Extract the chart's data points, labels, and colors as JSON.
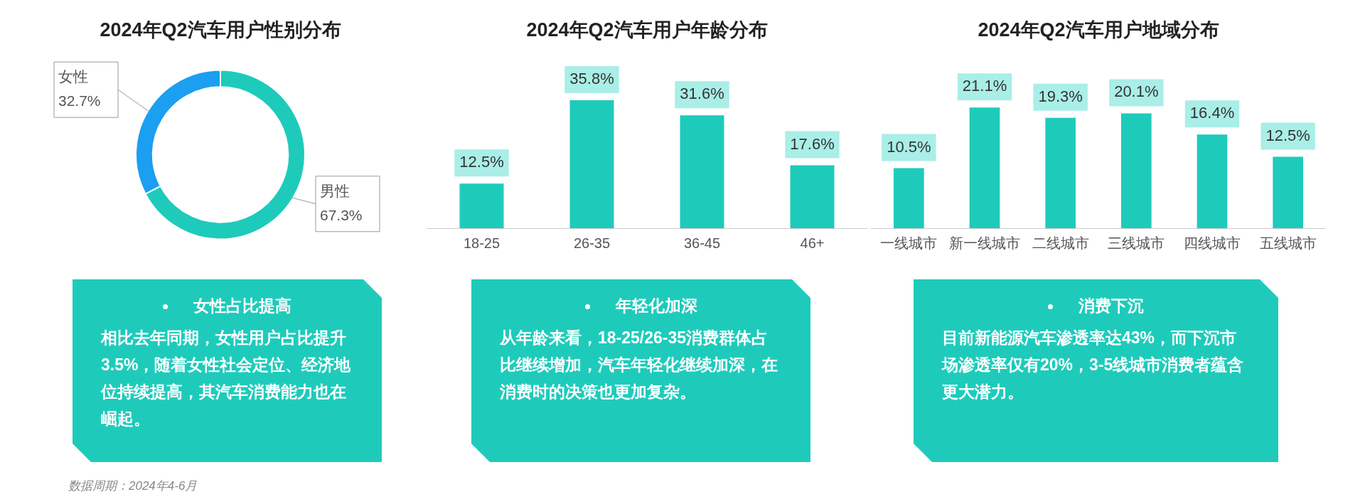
{
  "chart_data": [
    {
      "type": "donut",
      "title": "2024年Q2汽车用户性别分布",
      "categories": [
        "女性",
        "男性"
      ],
      "values": [
        32.7,
        67.3
      ],
      "colors": [
        "#1b9ff0",
        "#1ecbbb"
      ],
      "value_labels": [
        "32.7%",
        "67.3%"
      ],
      "legend": false
    },
    {
      "type": "bar",
      "title": "2024年Q2汽车用户年龄分布",
      "categories": [
        "18-25",
        "26-35",
        "36-45",
        "46+"
      ],
      "values": [
        12.5,
        35.8,
        31.6,
        17.6
      ],
      "color": "#1ecbbb",
      "value_labels": [
        "12.5%",
        "35.8%",
        "31.6%",
        "17.6%"
      ],
      "grid": false,
      "legend": false,
      "tick_labels": "x"
    },
    {
      "type": "bar",
      "title": "2024年Q2汽车用户地域分布",
      "categories": [
        "一线城市",
        "新一线城市",
        "二线城市",
        "三线城市",
        "四线城市",
        "五线城市"
      ],
      "values": [
        10.5,
        21.1,
        19.3,
        20.1,
        16.4,
        12.5
      ],
      "color": "#1ecbbb",
      "value_labels": [
        "10.5%",
        "21.1%",
        "19.3%",
        "20.1%",
        "16.4%",
        "12.5%"
      ],
      "grid": false,
      "legend": false,
      "tick_labels": "x"
    },
    {
      "type": "other",
      "title": "女性占比提高",
      "annotations": [
        "相比去年同期，女性用户占比提升3.5%，随着女性社会定位、经济地位持续提高，其汽车消费能力也在崛起。"
      ]
    },
    {
      "type": "other",
      "title": "年轻化加深",
      "annotations": [
        "从年龄来看，18-25/26-35消费群体占比继续增加，汽车年轻化继续加深，在消费时的决策也更加复杂。"
      ]
    },
    {
      "type": "other",
      "title": "消费下沉",
      "annotations": [
        "目前新能源汽车渗透率达43%，而下沉市场渗透率仅有20%，3-5线城市消费者蕴含更大潜力。"
      ]
    },
    {
      "type": "other",
      "annotations": [
        "数据周期：2024年4-6月"
      ]
    }
  ]
}
